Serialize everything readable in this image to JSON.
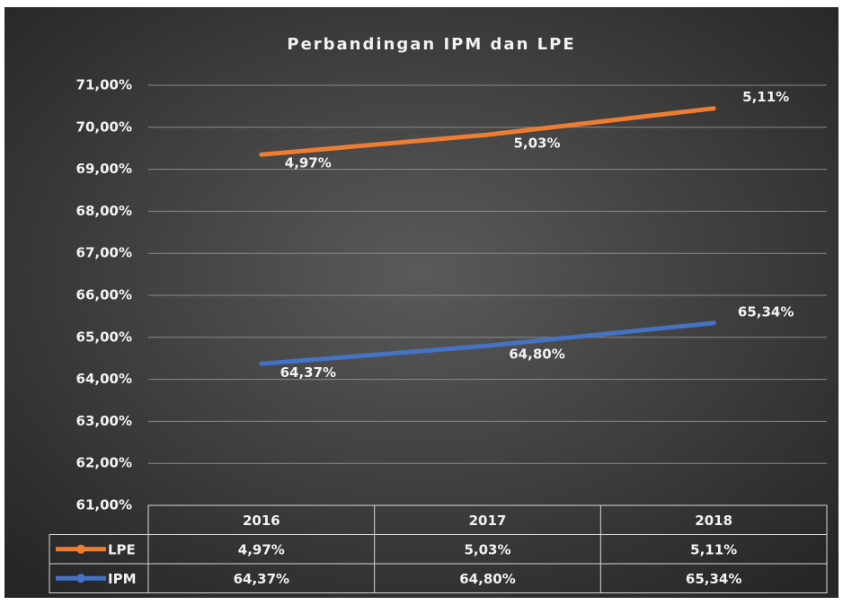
{
  "chart_data": {
    "type": "line",
    "title": "Perbandingan IPM dan LPE",
    "categories": [
      "2016",
      "2017",
      "2018"
    ],
    "series": [
      {
        "name": "LPE",
        "color": "#ed7d31",
        "axis": "y2",
        "values": [
          4.97,
          5.03,
          5.11
        ],
        "value_labels": [
          "4,97%",
          "5,03%",
          "5,11%"
        ]
      },
      {
        "name": "IPM",
        "color": "#4472c4",
        "values": [
          64.37,
          64.8,
          65.34
        ],
        "value_labels": [
          "64,37%",
          "64,80%",
          "65,34%"
        ]
      }
    ],
    "ylim": [
      61,
      71
    ],
    "yticks": [
      {
        "value": 61,
        "label": "61,00%"
      },
      {
        "value": 62,
        "label": "62,00%"
      },
      {
        "value": 63,
        "label": "63,00%"
      },
      {
        "value": 64,
        "label": "64,00%"
      },
      {
        "value": 65,
        "label": "65,00%"
      },
      {
        "value": 66,
        "label": "66,00%"
      },
      {
        "value": 67,
        "label": "67,00%"
      },
      {
        "value": 68,
        "label": "68,00%"
      },
      {
        "value": 69,
        "label": "69,00%"
      },
      {
        "value": 70,
        "label": "70,00%"
      },
      {
        "value": 71,
        "label": "71,00%"
      }
    ],
    "y2lim": [
      3.907,
      5.18
    ],
    "grid": true,
    "data_table": true
  }
}
